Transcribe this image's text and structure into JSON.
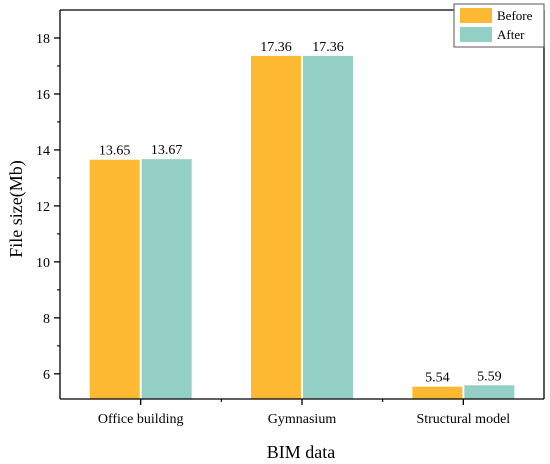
{
  "chart_data": {
    "type": "bar",
    "xlabel": "BIM data",
    "ylabel": "File size(Mb)",
    "categories": [
      "Office building",
      "Gymnasium",
      "Structural model"
    ],
    "series": [
      {
        "name": "Before",
        "color": "#FDB931",
        "values": [
          13.65,
          17.36,
          5.54
        ],
        "labels": [
          "13.65",
          "17.36",
          "5.54"
        ]
      },
      {
        "name": "After",
        "color": "#93CFC5",
        "values": [
          13.67,
          17.36,
          5.59
        ],
        "labels": [
          "13.67",
          "17.36",
          "5.59"
        ]
      }
    ],
    "ylim": [
      5.1,
      19.0
    ],
    "yticks": [
      6,
      8,
      10,
      12,
      14,
      16,
      18
    ],
    "grid": false,
    "legend_position": "top-right"
  }
}
